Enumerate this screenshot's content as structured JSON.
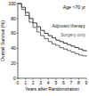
{
  "chart_data": {
    "type": "line",
    "line_style": "step",
    "legend": "upper right",
    "x_label": "Years after Randomization",
    "y_label": "Overall Survival (%)",
    "annotation": "Age >70 yr",
    "x": [
      0,
      0.5,
      1,
      1.5,
      2,
      2.5,
      3,
      3.5,
      4,
      4.5,
      5,
      5.5,
      6,
      6.5,
      7,
      7.5,
      8,
      8.5,
      9
    ],
    "series": [
      {
        "name": "Adjuvant therapy",
        "color": "#222222",
        "values": [
          100,
          95,
          88,
          80,
          74,
          69,
          64,
          60,
          57,
          54,
          51,
          49,
          47,
          45,
          43,
          41,
          39,
          37,
          36
        ]
      },
      {
        "name": "Surgery only",
        "color": "#555555",
        "values": [
          100,
          92,
          84,
          75,
          68,
          62,
          57,
          53,
          49,
          46,
          44,
          41,
          39,
          37,
          35,
          33,
          31,
          30,
          29
        ]
      }
    ],
    "xlim": [
      0,
      9
    ],
    "xticks": [
      0,
      1,
      2,
      3,
      4,
      5,
      6,
      7,
      8,
      9
    ],
    "ylim": [
      0,
      100
    ],
    "yticks": [
      0,
      20,
      40,
      60,
      80,
      100
    ],
    "grid": false
  }
}
